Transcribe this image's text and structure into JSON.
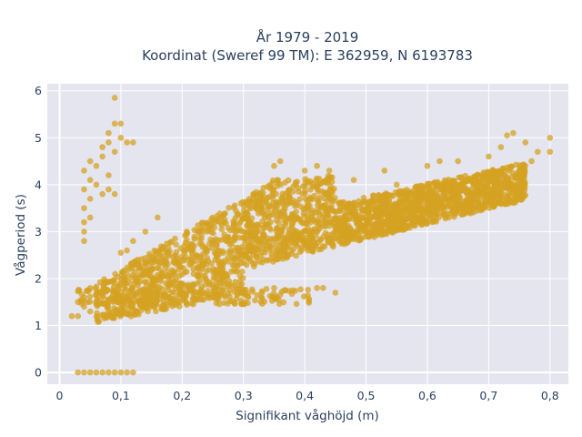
{
  "chart_data": {
    "type": "scatter",
    "title_line1": "År 1979 - 2019",
    "title_line2": "Koordinat (Sweref 99 TM): E 362959, N 6193783",
    "xlabel": "Signifikant våghöjd (m)",
    "ylabel": "Vågperiod (s)",
    "xlim": [
      -0.02,
      0.83
    ],
    "ylim": [
      -0.25,
      6.15
    ],
    "x_ticks": [
      {
        "value": 0,
        "label": "0"
      },
      {
        "value": 0.1,
        "label": "0,1"
      },
      {
        "value": 0.2,
        "label": "0,2"
      },
      {
        "value": 0.3,
        "label": "0,3"
      },
      {
        "value": 0.4,
        "label": "0,4"
      },
      {
        "value": 0.5,
        "label": "0,5"
      },
      {
        "value": 0.6,
        "label": "0,6"
      },
      {
        "value": 0.7,
        "label": "0,7"
      },
      {
        "value": 0.8,
        "label": "0,8"
      }
    ],
    "y_ticks": [
      {
        "value": 0,
        "label": "0"
      },
      {
        "value": 1,
        "label": "1"
      },
      {
        "value": 2,
        "label": "2"
      },
      {
        "value": 3,
        "label": "3"
      },
      {
        "value": 4,
        "label": "4"
      },
      {
        "value": 5,
        "label": "5"
      },
      {
        "value": 6,
        "label": "6"
      }
    ],
    "grid": true,
    "marker_color": "#d4a121",
    "plot_background": "#e5e5ef",
    "series": [
      {
        "points": [
          [
            0.03,
            0
          ],
          [
            0.04,
            0
          ],
          [
            0.05,
            0
          ],
          [
            0.06,
            0
          ],
          [
            0.07,
            0
          ],
          [
            0.08,
            0
          ],
          [
            0.09,
            0
          ],
          [
            0.1,
            0
          ],
          [
            0.11,
            0
          ],
          [
            0.12,
            0
          ],
          [
            0.02,
            1.2
          ],
          [
            0.03,
            1.2
          ],
          [
            0.03,
            1.5
          ],
          [
            0.04,
            1.4
          ],
          [
            0.04,
            1.6
          ],
          [
            0.05,
            1.8
          ],
          [
            0.05,
            1.3
          ],
          [
            0.04,
            3.2
          ],
          [
            0.04,
            3.0
          ],
          [
            0.04,
            2.8
          ],
          [
            0.05,
            3.3
          ],
          [
            0.04,
            3.5
          ],
          [
            0.05,
            3.7
          ],
          [
            0.04,
            3.9
          ],
          [
            0.05,
            4.1
          ],
          [
            0.04,
            4.3
          ],
          [
            0.05,
            4.5
          ],
          [
            0.06,
            4.0
          ],
          [
            0.06,
            4.4
          ],
          [
            0.07,
            3.8
          ],
          [
            0.07,
            4.6
          ],
          [
            0.07,
            4.8
          ],
          [
            0.08,
            4.2
          ],
          [
            0.08,
            4.9
          ],
          [
            0.08,
            5.1
          ],
          [
            0.09,
            5.3
          ],
          [
            0.09,
            4.7
          ],
          [
            0.1,
            5.3
          ],
          [
            0.1,
            5.0
          ],
          [
            0.11,
            4.9
          ],
          [
            0.12,
            4.9
          ],
          [
            0.09,
            3.8
          ],
          [
            0.08,
            3.9
          ],
          [
            0.09,
            5.85
          ],
          [
            0.1,
            2.55
          ],
          [
            0.11,
            2.6
          ],
          [
            0.12,
            2.8
          ],
          [
            0.15,
            2.4
          ],
          [
            0.16,
            3.3
          ],
          [
            0.14,
            3.0
          ],
          [
            0.33,
            1.7
          ],
          [
            0.35,
            1.8
          ],
          [
            0.38,
            1.75
          ],
          [
            0.42,
            1.8
          ],
          [
            0.43,
            1.8
          ],
          [
            0.45,
            1.7
          ],
          [
            0.35,
            4.4
          ],
          [
            0.36,
            4.5
          ],
          [
            0.4,
            4.3
          ],
          [
            0.42,
            4.4
          ],
          [
            0.44,
            4.3
          ],
          [
            0.48,
            4.1
          ],
          [
            0.53,
            4.3
          ],
          [
            0.55,
            4.0
          ],
          [
            0.6,
            4.4
          ],
          [
            0.62,
            4.5
          ],
          [
            0.65,
            4.5
          ],
          [
            0.7,
            4.6
          ],
          [
            0.73,
            5.05
          ],
          [
            0.74,
            5.1
          ],
          [
            0.72,
            4.8
          ],
          [
            0.76,
            4.9
          ],
          [
            0.78,
            4.7
          ],
          [
            0.8,
            5.0
          ],
          [
            0.8,
            4.7
          ],
          [
            0.77,
            4.5
          ],
          [
            0.75,
            4.3
          ]
        ]
      }
    ]
  }
}
